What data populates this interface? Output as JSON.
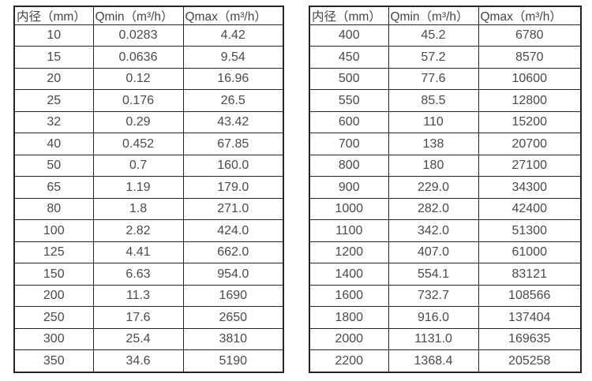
{
  "page": {
    "background": "#ffffff",
    "text_color": "#4a4a4a",
    "border_color": "#262626"
  },
  "chart_data": [
    {
      "type": "table",
      "title": "",
      "columns": [
        "内径（mm）",
        "Qmin（m³/h）",
        "Qmax（m³/h）"
      ],
      "rows": [
        [
          "10",
          "0.0283",
          "4.42"
        ],
        [
          "15",
          "0.0636",
          "9.54"
        ],
        [
          "20",
          "0.12",
          "16.96"
        ],
        [
          "25",
          "0.176",
          "26.5"
        ],
        [
          "32",
          "0.29",
          "43.42"
        ],
        [
          "40",
          "0.452",
          "67.85"
        ],
        [
          "50",
          "0.7",
          "160.0"
        ],
        [
          "65",
          "1.19",
          "179.0"
        ],
        [
          "80",
          "1.8",
          "271.0"
        ],
        [
          "100",
          "2.82",
          "424.0"
        ],
        [
          "125",
          "4.41",
          "662.0"
        ],
        [
          "150",
          "6.63",
          "954.0"
        ],
        [
          "200",
          "11.3",
          "1690"
        ],
        [
          "250",
          "17.6",
          "2650"
        ],
        [
          "300",
          "25.4",
          "3810"
        ],
        [
          "350",
          "34.6",
          "5190"
        ]
      ]
    },
    {
      "type": "table",
      "title": "",
      "columns": [
        "内径（mm）",
        "Qmin（m³/h）",
        "Qmax（m³/h）"
      ],
      "rows": [
        [
          "400",
          "45.2",
          "6780"
        ],
        [
          "450",
          "57.2",
          "8570"
        ],
        [
          "500",
          "77.6",
          "10600"
        ],
        [
          "550",
          "85.5",
          "12800"
        ],
        [
          "600",
          "110",
          "15200"
        ],
        [
          "700",
          "138",
          "20700"
        ],
        [
          "800",
          "180",
          "27100"
        ],
        [
          "900",
          "229.0",
          "34300"
        ],
        [
          "1000",
          "282.0",
          "42400"
        ],
        [
          "1100",
          "342.0",
          "51300"
        ],
        [
          "1200",
          "407.0",
          "61000"
        ],
        [
          "1400",
          "554.1",
          "83121"
        ],
        [
          "1600",
          "732.7",
          "108566"
        ],
        [
          "1800",
          "916.0",
          "137404"
        ],
        [
          "2000",
          "1131.0",
          "169635"
        ],
        [
          "2200",
          "1368.4",
          "205258"
        ]
      ]
    }
  ]
}
